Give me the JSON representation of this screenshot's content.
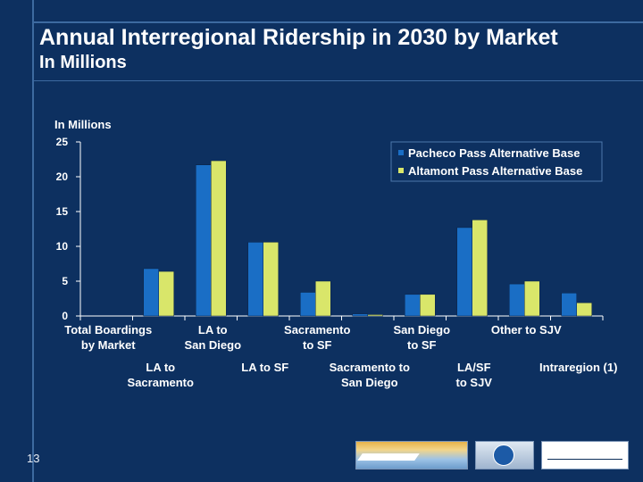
{
  "slide": {
    "title": "Annual Interregional Ridership in 2030 by Market",
    "subtitle": "In Millions",
    "page_number": "13"
  },
  "colors": {
    "background": "#0d3060",
    "series_a": "#1a6ec5",
    "series_b": "#d9e66a",
    "axis": "#ffffff"
  },
  "chart_data": {
    "type": "bar",
    "ylabel": "In Millions",
    "ylim": [
      0,
      25
    ],
    "yticks": [
      0,
      5,
      10,
      15,
      20,
      25
    ],
    "legend_position": "top-right",
    "categories": [
      [
        "Total Boardings",
        "by Market"
      ],
      [
        "LA to",
        "Sacramento"
      ],
      [
        "LA to",
        "San Diego"
      ],
      [
        "LA to SF"
      ],
      [
        "Sacramento",
        "to SF"
      ],
      [
        "Sacramento to",
        "San Diego"
      ],
      [
        "San Diego",
        "to SF"
      ],
      [
        "LA/SF",
        "to SJV"
      ],
      [
        "Other to SJV"
      ],
      [
        "Intraregion (1)"
      ]
    ],
    "series": [
      {
        "name": "Pacheco Pass Alternative Base",
        "values": [
          null,
          6.8,
          21.7,
          10.6,
          3.4,
          0.3,
          3.1,
          12.7,
          4.6,
          3.3
        ]
      },
      {
        "name": "Altamont Pass Alternative Base",
        "values": [
          null,
          6.4,
          22.3,
          10.6,
          5.0,
          0.2,
          3.1,
          13.8,
          5.0,
          1.9
        ]
      }
    ]
  }
}
